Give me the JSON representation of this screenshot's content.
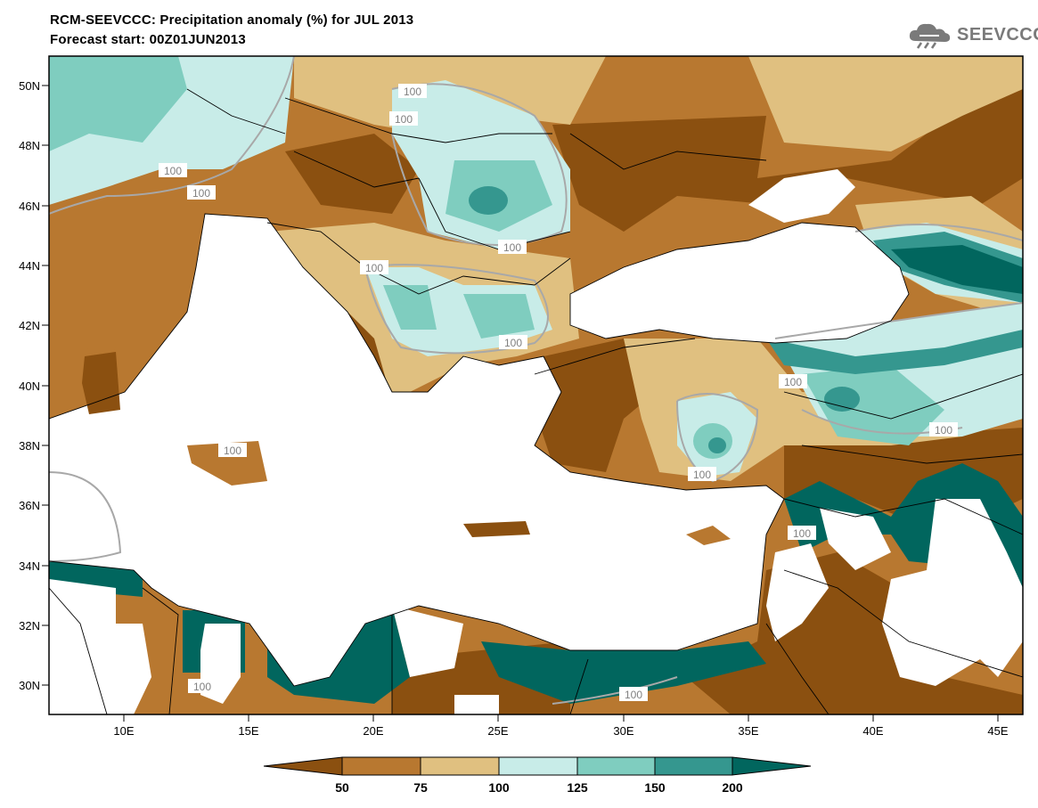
{
  "header": {
    "title": "RCM-SEEVCCC: Precipitation anomaly (%) for JUL 2013",
    "subtitle": "Forecast start: 00Z01JUN2013",
    "logo_text": "SEEVCCC"
  },
  "map": {
    "lon_range": [
      7,
      46
    ],
    "lat_range": [
      29,
      51
    ],
    "lat_ticks": [
      "50N",
      "48N",
      "46N",
      "44N",
      "42N",
      "40N",
      "38N",
      "36N",
      "34N",
      "32N",
      "30N"
    ],
    "lon_ticks": [
      "10E",
      "15E",
      "20E",
      "25E",
      "30E",
      "35E",
      "40E",
      "45E"
    ],
    "contour_label": "100"
  },
  "legend": {
    "ticks": [
      "50",
      "75",
      "100",
      "125",
      "150",
      "200"
    ],
    "colors": [
      "#8B5010",
      "#B87830",
      "#E0C080",
      "#C8ECE8",
      "#7FCDBF",
      "#35978F",
      "#01665E"
    ]
  },
  "colors": {
    "very_dry": "#8B5010",
    "dry": "#B87830",
    "slightly_dry": "#E0C080",
    "slightly_wet": "#C8ECE8",
    "wet": "#7FCDBF",
    "very_wet": "#35978F",
    "extremely_wet": "#01665E",
    "contour": "#A8A8A8"
  }
}
